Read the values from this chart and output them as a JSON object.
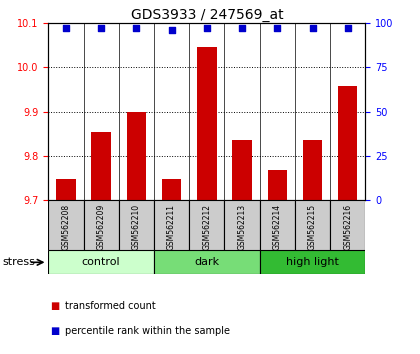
{
  "title": "GDS3933 / 247569_at",
  "samples": [
    "GSM562208",
    "GSM562209",
    "GSM562210",
    "GSM562211",
    "GSM562212",
    "GSM562213",
    "GSM562214",
    "GSM562215",
    "GSM562216"
  ],
  "bar_values": [
    9.748,
    9.853,
    9.898,
    9.748,
    10.045,
    9.835,
    9.768,
    9.835,
    9.958
  ],
  "percentile_values": [
    97,
    97,
    97,
    96,
    97,
    97,
    97,
    97,
    97
  ],
  "ylim_left": [
    9.7,
    10.1
  ],
  "ylim_right": [
    0,
    100
  ],
  "yticks_left": [
    9.7,
    9.8,
    9.9,
    10.0,
    10.1
  ],
  "yticks_right": [
    0,
    25,
    50,
    75,
    100
  ],
  "bar_color": "#cc0000",
  "dot_color": "#0000cc",
  "groups": [
    {
      "label": "control",
      "start": 0,
      "end": 3,
      "color": "#ccffcc"
    },
    {
      "label": "dark",
      "start": 3,
      "end": 6,
      "color": "#77dd77"
    },
    {
      "label": "high light",
      "start": 6,
      "end": 9,
      "color": "#33bb33"
    }
  ],
  "stress_label": "stress",
  "legend_red": "transformed count",
  "legend_blue": "percentile rank within the sample",
  "sample_box_color": "#cccccc",
  "title_fontsize": 10,
  "tick_fontsize": 7,
  "bar_fontsize": 6
}
